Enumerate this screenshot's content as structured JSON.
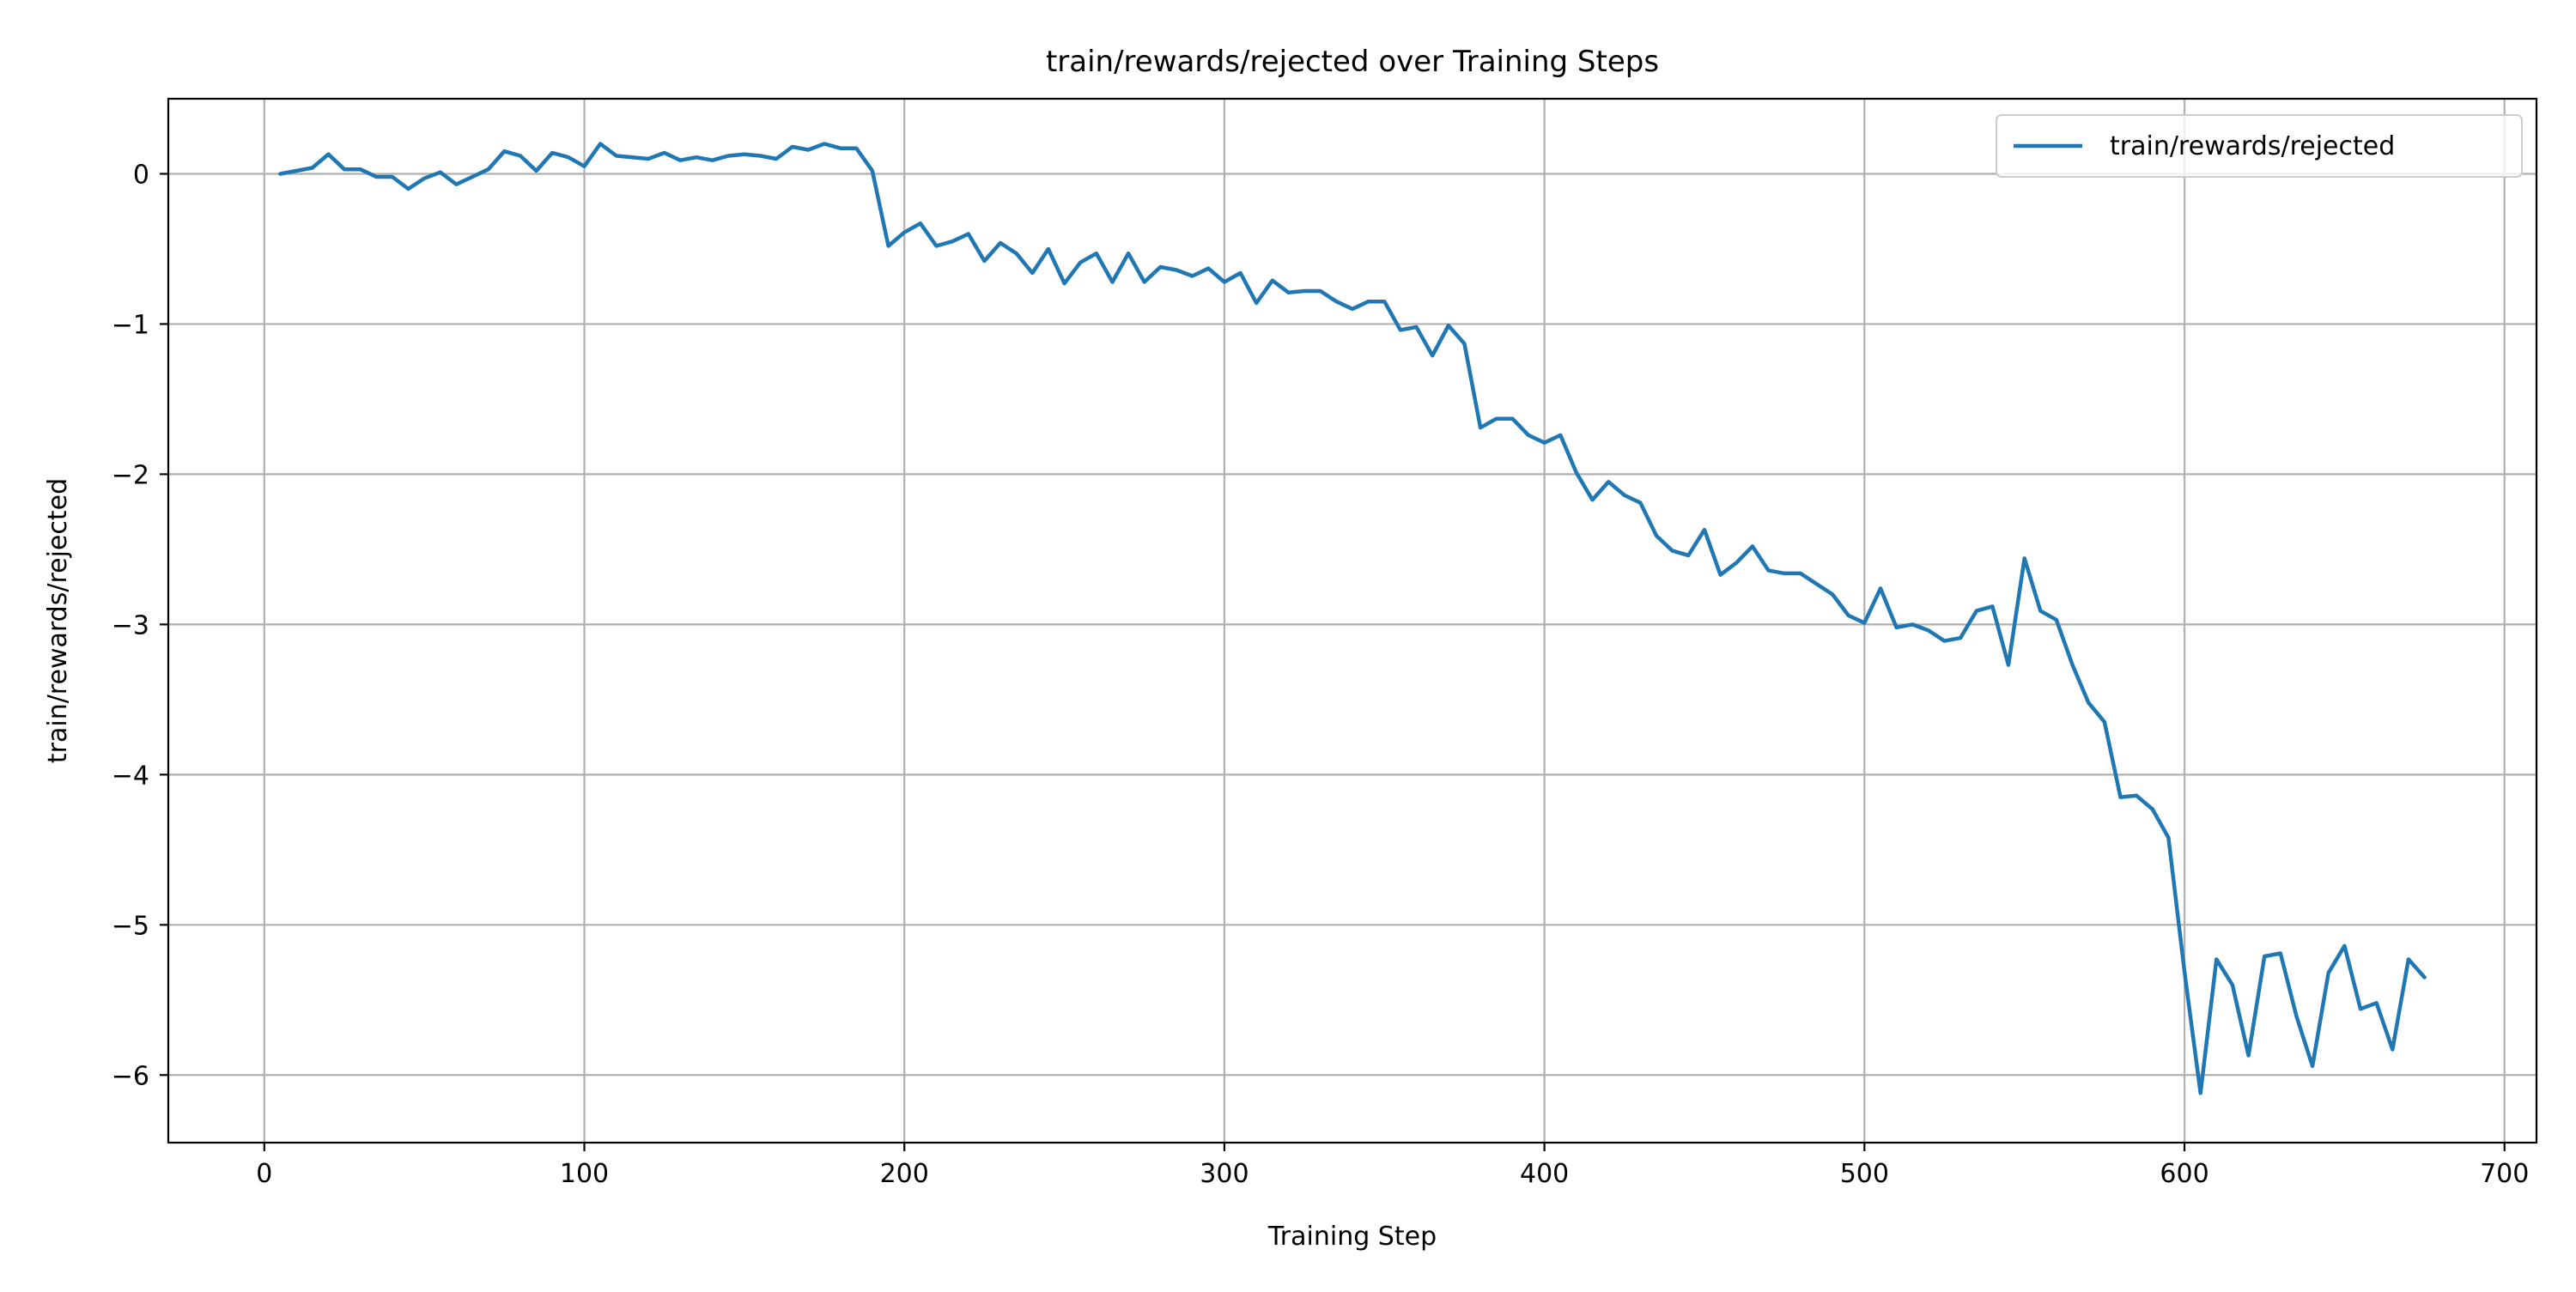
{
  "chart_data": {
    "type": "line",
    "title": "train/rewards/rejected over Training Steps",
    "xlabel": "Training Step",
    "ylabel": "train/rewards/rejected",
    "xlim": [
      -30,
      710
    ],
    "ylim": [
      -6.45,
      0.5
    ],
    "xticks": [
      0,
      100,
      200,
      300,
      400,
      500,
      600,
      700
    ],
    "xtick_labels": [
      "0",
      "100",
      "200",
      "300",
      "400",
      "500",
      "600",
      "700"
    ],
    "yticks": [
      0,
      -1,
      -2,
      -3,
      -4,
      -5,
      -6
    ],
    "ytick_labels": [
      "0",
      "−1",
      "−2",
      "−3",
      "−4",
      "−5",
      "−6"
    ],
    "grid": true,
    "legend": {
      "position": "top-right"
    },
    "colors": {
      "series": "#1f77b4",
      "grid": "#b0b0b0",
      "axes": "#000000"
    },
    "series": [
      {
        "name": "train/rewards/rejected",
        "x": [
          5,
          10,
          15,
          20,
          25,
          30,
          35,
          40,
          45,
          50,
          55,
          60,
          65,
          70,
          75,
          80,
          85,
          90,
          95,
          100,
          105,
          110,
          115,
          120,
          125,
          130,
          135,
          140,
          145,
          150,
          155,
          160,
          165,
          170,
          175,
          180,
          185,
          190,
          195,
          200,
          205,
          210,
          215,
          220,
          225,
          230,
          235,
          240,
          245,
          250,
          255,
          260,
          265,
          270,
          275,
          280,
          285,
          290,
          295,
          300,
          305,
          310,
          315,
          320,
          325,
          330,
          335,
          340,
          345,
          350,
          355,
          360,
          365,
          370,
          375,
          380,
          385,
          390,
          395,
          400,
          405,
          410,
          415,
          420,
          425,
          430,
          435,
          440,
          445,
          450,
          455,
          460,
          465,
          470,
          475,
          480,
          485,
          490,
          495,
          500,
          505,
          510,
          515,
          520,
          525,
          530,
          535,
          540,
          545,
          550,
          555,
          560,
          565,
          570,
          575,
          580,
          585,
          590,
          595,
          600,
          605,
          610,
          615,
          620,
          625,
          630,
          635,
          640,
          645,
          650,
          655,
          660,
          665,
          670,
          675
        ],
        "y": [
          0.0,
          0.02,
          0.04,
          0.13,
          0.03,
          0.03,
          -0.02,
          -0.02,
          -0.1,
          -0.03,
          0.01,
          -0.07,
          -0.02,
          0.03,
          0.15,
          0.12,
          0.02,
          0.14,
          0.11,
          0.05,
          0.2,
          0.12,
          0.11,
          0.1,
          0.14,
          0.09,
          0.11,
          0.09,
          0.12,
          0.13,
          0.12,
          0.1,
          0.18,
          0.16,
          0.2,
          0.17,
          0.17,
          0.02,
          -0.48,
          -0.39,
          -0.33,
          -0.48,
          -0.45,
          -0.4,
          -0.58,
          -0.46,
          -0.53,
          -0.66,
          -0.5,
          -0.73,
          -0.59,
          -0.53,
          -0.72,
          -0.53,
          -0.72,
          -0.62,
          -0.64,
          -0.68,
          -0.63,
          -0.72,
          -0.66,
          -0.86,
          -0.71,
          -0.79,
          -0.78,
          -0.78,
          -0.85,
          -0.9,
          -0.85,
          -0.85,
          -1.04,
          -1.02,
          -1.21,
          -1.01,
          -1.13,
          -1.69,
          -1.63,
          -1.63,
          -1.74,
          -1.79,
          -1.74,
          -1.99,
          -2.17,
          -2.05,
          -2.14,
          -2.19,
          -2.41,
          -2.51,
          -2.54,
          -2.37,
          -2.67,
          -2.59,
          -2.48,
          -2.64,
          -2.66,
          -2.66,
          -2.73,
          -2.8,
          -2.94,
          -2.99,
          -2.76,
          -3.02,
          -3.0,
          -3.04,
          -3.11,
          -3.09,
          -2.91,
          -2.88,
          -3.27,
          -2.56,
          -2.91,
          -2.97,
          -3.27,
          -3.52,
          -3.65,
          -4.15,
          -4.14,
          -4.23,
          -4.42,
          -5.31,
          -6.12,
          -5.23,
          -5.4,
          -5.87,
          -5.21,
          -5.19,
          -5.61,
          -5.94,
          -5.32,
          -5.14,
          -5.56,
          -5.52,
          -5.83,
          -5.23,
          -5.35
        ]
      }
    ]
  }
}
